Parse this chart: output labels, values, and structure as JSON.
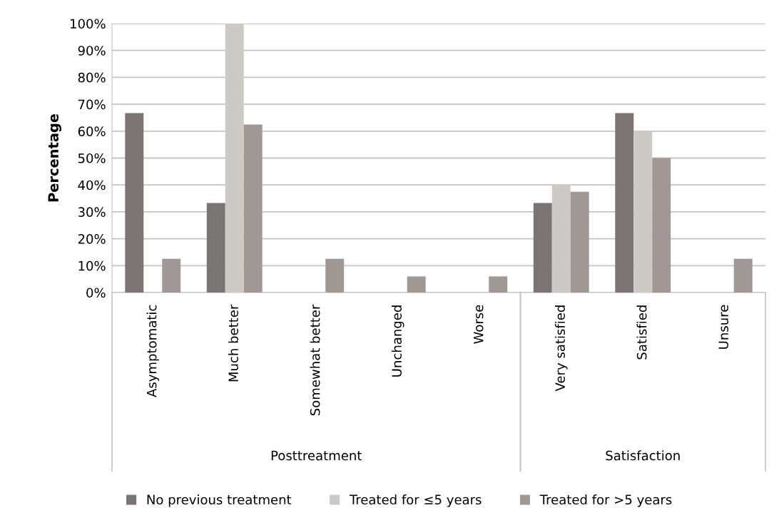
{
  "chart_data": {
    "type": "bar",
    "ylabel": "Percentage",
    "categories": [
      "Asymptomatic",
      "Much better",
      "Somewhat better",
      "Unchanged",
      "Worse",
      "Very satisfied",
      "Satisfied",
      "Unsure"
    ],
    "series": [
      {
        "name": "No previous treatment",
        "color": "#7a7473",
        "values": [
          66.7,
          33.3,
          0,
          0,
          0,
          33.3,
          66.7,
          0
        ]
      },
      {
        "name": "Treated for ≤5 years",
        "color": "#cdcac6",
        "values": [
          0,
          100,
          0,
          0,
          0,
          40,
          60,
          0
        ]
      },
      {
        "name": "Treated for >5 years",
        "color": "#a09895",
        "values": [
          12.5,
          62.5,
          12.5,
          6,
          6,
          37.5,
          50,
          12.5
        ]
      }
    ],
    "ylim": [
      0,
      100
    ],
    "yticks": [
      {
        "value": 0,
        "label": "0%"
      },
      {
        "value": 10,
        "label": "10%"
      },
      {
        "value": 20,
        "label": "20%"
      },
      {
        "value": 30,
        "label": "30%"
      },
      {
        "value": 40,
        "label": "40%"
      },
      {
        "value": 50,
        "label": "50%"
      },
      {
        "value": 60,
        "label": "60%"
      },
      {
        "value": 70,
        "label": "70%"
      },
      {
        "value": 80,
        "label": "80%"
      },
      {
        "value": 90,
        "label": "90%"
      },
      {
        "value": 100,
        "label": "100%"
      }
    ],
    "grid": "y",
    "legend": "bottom",
    "annotations": [
      "Posttreatment",
      "Satisfaction"
    ]
  }
}
